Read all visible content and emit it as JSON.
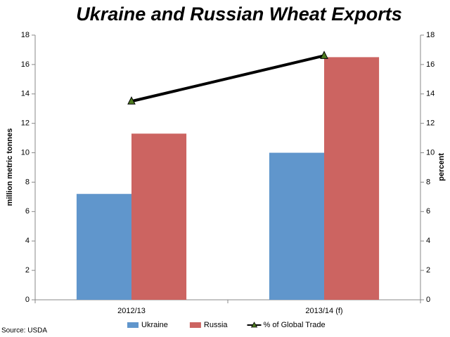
{
  "chart_data": {
    "type": "bar",
    "title": "Ukraine and Russian Wheat Exports",
    "y_label": "million metric tonnes",
    "y2_label": "percent",
    "source": "Source: USDA",
    "categories": [
      "2012/13",
      "2013/14 (f)"
    ],
    "series": [
      {
        "name": "Ukraine",
        "color": "#6096cc",
        "values": [
          7.2,
          10.0
        ]
      },
      {
        "name": "Russia",
        "color": "#cc6461",
        "values": [
          11.3,
          16.5
        ]
      },
      {
        "name": "% of Global Trade",
        "type": "line",
        "axis": "y2",
        "color": "#000000",
        "marker_color": "#4d7a1f",
        "values": [
          13.5,
          16.6
        ]
      }
    ],
    "ylim": [
      0,
      18
    ],
    "yticks": [
      0,
      2,
      4,
      6,
      8,
      10,
      12,
      14,
      16,
      18
    ],
    "y2lim": [
      0,
      18
    ],
    "y2ticks": [
      0,
      2,
      4,
      6,
      8,
      10,
      12,
      14,
      16,
      18
    ],
    "grid": false,
    "legend": "bottom"
  }
}
